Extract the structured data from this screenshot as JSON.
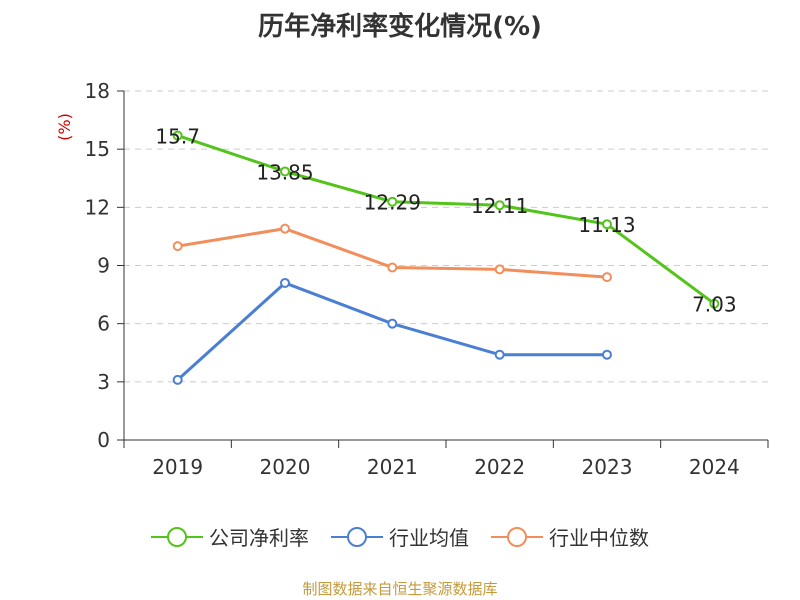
{
  "chart_data": {
    "type": "line",
    "title": "历年净利率变化情况(%)",
    "ylabel": "(%)",
    "xlabel": "",
    "categories": [
      "2019",
      "2020",
      "2021",
      "2022",
      "2023",
      "2024"
    ],
    "ylim": [
      0,
      18
    ],
    "yticks": [
      0,
      3,
      6,
      9,
      12,
      15,
      18
    ],
    "grid": true,
    "legend_position": "bottom",
    "series": [
      {
        "name": "公司净利率",
        "color": "#52c41a",
        "values": [
          15.7,
          13.85,
          12.29,
          12.11,
          11.13,
          7.03
        ],
        "labels": [
          "15.7",
          "13.85",
          "12.29",
          "12.11",
          "11.13",
          "7.03"
        ]
      },
      {
        "name": "行业均值",
        "color": "#4a7fd4",
        "values": [
          3.1,
          8.1,
          6.0,
          4.4,
          4.4,
          null
        ]
      },
      {
        "name": "行业中位数",
        "color": "#f28e5b",
        "values": [
          10.0,
          10.9,
          8.9,
          8.8,
          8.4,
          null
        ]
      }
    ],
    "source": "制图数据来自恒生聚源数据库"
  }
}
